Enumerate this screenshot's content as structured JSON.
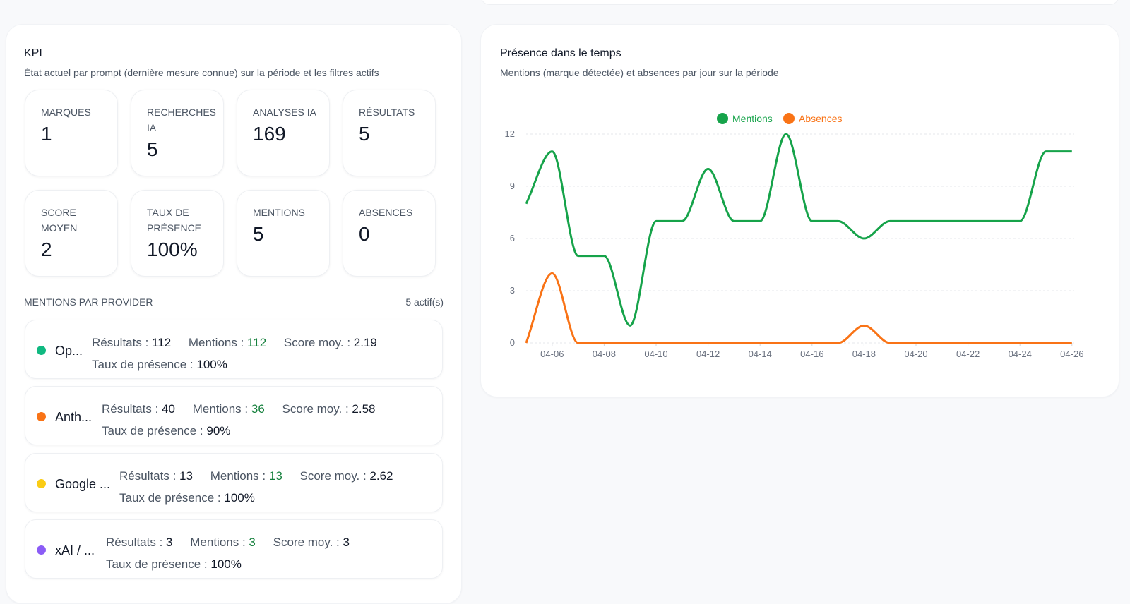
{
  "kpi": {
    "title": "KPI",
    "subtitle": "État actuel par prompt (dernière mesure connue) sur la période et les filtres actifs",
    "tiles": [
      {
        "label": "MARQUES",
        "value": "1"
      },
      {
        "label": "RECHERCHES IA",
        "value": "5"
      },
      {
        "label": "ANALYSES IA",
        "value": "169"
      },
      {
        "label": "RÉSULTATS",
        "value": "5"
      },
      {
        "label": "SCORE MOYEN",
        "value": "2"
      },
      {
        "label": "TAUX DE PRÉSENCE",
        "value": "100%"
      },
      {
        "label": "MENTIONS",
        "value": "5"
      },
      {
        "label": "ABSENCES",
        "value": "0"
      }
    ],
    "providers_label": "MENTIONS PAR PROVIDER",
    "providers_active": "5 actif(s)",
    "stat_labels": {
      "results": "Résultats : ",
      "mentions": "Mentions : ",
      "score": "Score moy. : ",
      "presence": "Taux de présence : "
    },
    "providers": [
      {
        "name": "Op...",
        "color": "#10b981",
        "results": "112",
        "mentions": "112",
        "score": "2.19",
        "presence": "100%"
      },
      {
        "name": "Anth...",
        "color": "#f97316",
        "results": "40",
        "mentions": "36",
        "score": "2.58",
        "presence": "90%"
      },
      {
        "name": "Google ...",
        "color": "#facc15",
        "results": "13",
        "mentions": "13",
        "score": "2.62",
        "presence": "100%"
      },
      {
        "name": "xAI / ...",
        "color": "#8b5cf6",
        "results": "3",
        "mentions": "3",
        "score": "3",
        "presence": "100%"
      }
    ]
  },
  "chart": {
    "title": "Présence dans le temps",
    "subtitle": "Mentions (marque détectée) et absences par jour sur la période"
  },
  "chart_data": {
    "type": "line",
    "x": [
      "04-05",
      "04-06",
      "04-07",
      "04-08",
      "04-09",
      "04-10",
      "04-11",
      "04-12",
      "04-13",
      "04-14",
      "04-15",
      "04-16",
      "04-17",
      "04-18",
      "04-19",
      "04-20",
      "04-21",
      "04-22",
      "04-23",
      "04-24",
      "04-25",
      "04-26"
    ],
    "x_ticks": [
      "04-06",
      "04-08",
      "04-10",
      "04-12",
      "04-14",
      "04-16",
      "04-18",
      "04-20",
      "04-22",
      "04-24",
      "04-26"
    ],
    "y_ticks": [
      "0",
      "3",
      "6",
      "9",
      "12"
    ],
    "ylim": [
      0,
      12
    ],
    "series": [
      {
        "name": "Mentions",
        "color": "#16a34a",
        "values": [
          8,
          11,
          5,
          5,
          1,
          7,
          7,
          10,
          7,
          7,
          12,
          7,
          7,
          6,
          7,
          7,
          7,
          7,
          7,
          7,
          11,
          11
        ]
      },
      {
        "name": "Absences",
        "color": "#f97316",
        "values": [
          0,
          4,
          0,
          0,
          0,
          0,
          0,
          0,
          0,
          0,
          0,
          0,
          0,
          1,
          0,
          0,
          0,
          0,
          0,
          0,
          0,
          0
        ]
      }
    ],
    "legend": "top-center",
    "grid": true
  }
}
